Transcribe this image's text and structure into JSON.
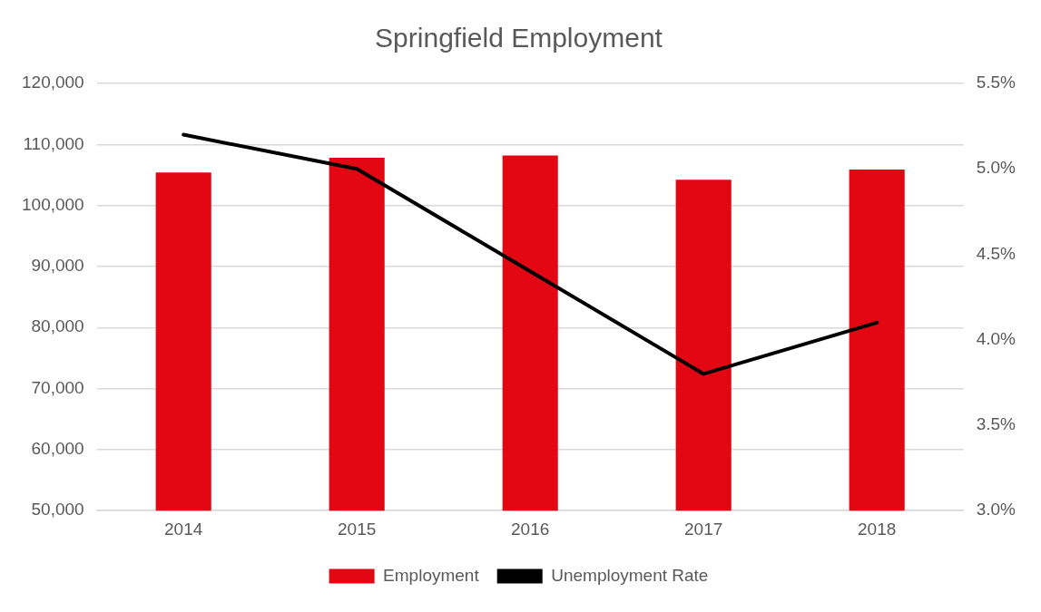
{
  "chart_data": {
    "type": "bar",
    "title": "Springfield Employment",
    "categories": [
      "2014",
      "2015",
      "2016",
      "2017",
      "2018"
    ],
    "series": [
      {
        "name": "Employment",
        "color": "#e30613",
        "values": [
          105400,
          107800,
          108200,
          104200,
          105900
        ]
      },
      {
        "name": "Unemployment Rate",
        "type": "line",
        "axis": "y2",
        "color": "#000000",
        "values": [
          5.2,
          5.0,
          4.4,
          3.8,
          4.1
        ]
      }
    ],
    "ylim": [
      50000,
      120000
    ],
    "yticks": [
      {
        "value": 50000,
        "label": "50,000"
      },
      {
        "value": 60000,
        "label": "60,000"
      },
      {
        "value": 70000,
        "label": "70,000"
      },
      {
        "value": 80000,
        "label": "80,000"
      },
      {
        "value": 90000,
        "label": "90,000"
      },
      {
        "value": 100000,
        "label": "100,000"
      },
      {
        "value": 110000,
        "label": "110,000"
      },
      {
        "value": 120000,
        "label": "120,000"
      }
    ],
    "y2lim": [
      3.0,
      5.5
    ],
    "y2ticks": [
      {
        "value": 3.0,
        "label": "3.0%"
      },
      {
        "value": 3.5,
        "label": "3.5%"
      },
      {
        "value": 4.0,
        "label": "4.0%"
      },
      {
        "value": 4.5,
        "label": "4.5%"
      },
      {
        "value": 5.0,
        "label": "5.0%"
      },
      {
        "value": 5.5,
        "label": "5.5%"
      }
    ],
    "grid": "y",
    "legend": "bottom",
    "marker": "none",
    "line_style": "solid"
  }
}
